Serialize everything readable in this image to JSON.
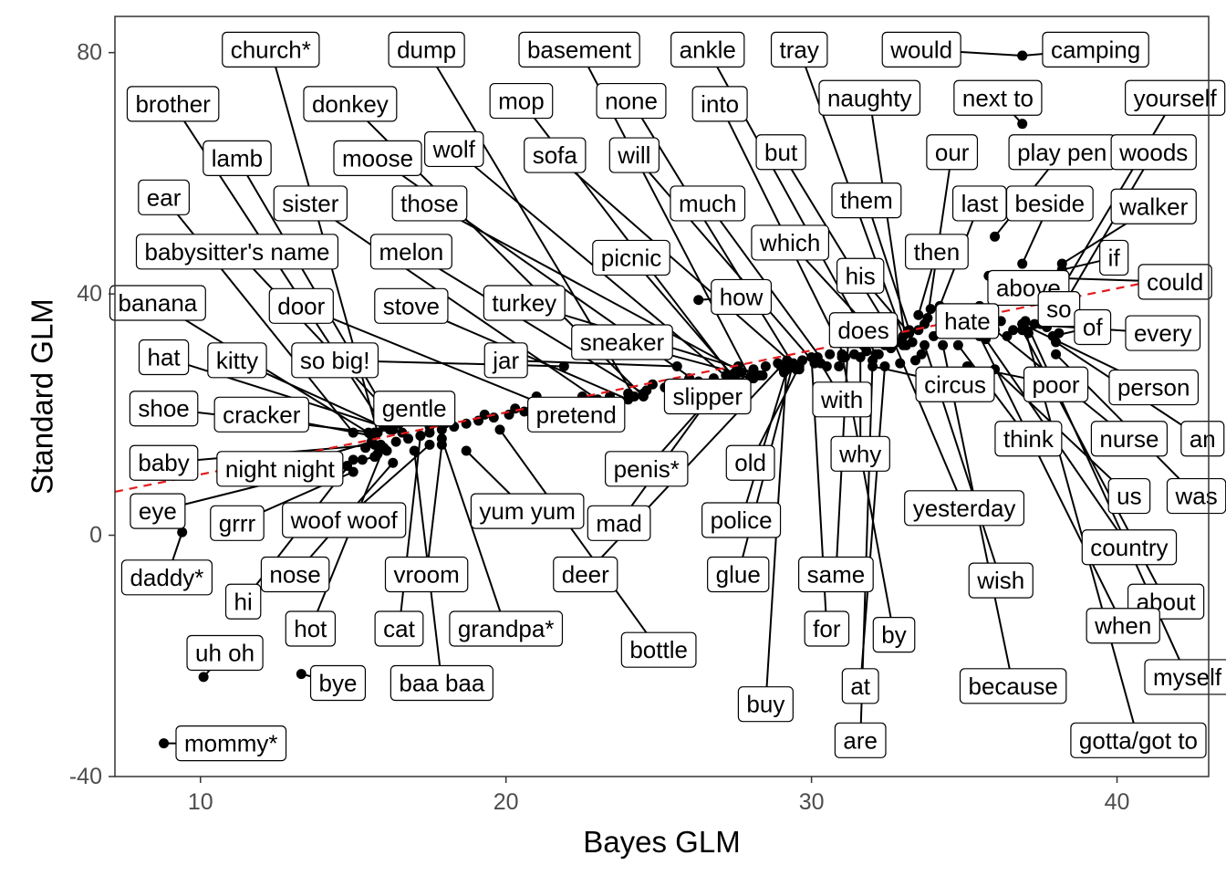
{
  "chart_data": {
    "type": "scatter",
    "xlabel": "Bayes GLM",
    "ylabel": "Standard GLM",
    "xlim": [
      7.2,
      43.0
    ],
    "ylim": [
      -40,
      86
    ],
    "x_ticks": [
      10,
      20,
      30,
      40
    ],
    "y_ticks": [
      -40,
      0,
      40,
      80
    ],
    "grid": false,
    "reference_line": {
      "style": "dashed",
      "color": "#e41a1c",
      "points": [
        [
          7.2,
          7.2
        ],
        [
          43.0,
          44.0
        ]
      ]
    },
    "colors": {
      "points": "#000000",
      "reference": "#e41a1c",
      "label_border": "#000000"
    },
    "labeled_points": [
      {
        "label": "church*",
        "x": 15.8,
        "y": 17,
        "lx": 12.3,
        "ly": 80.5
      },
      {
        "label": "dump",
        "x": 24.2,
        "y": 23,
        "lx": 17.4,
        "ly": 80.5
      },
      {
        "label": "basement",
        "x": 28.0,
        "y": 26,
        "lx": 22.4,
        "ly": 80.5
      },
      {
        "label": "ankle",
        "x": 32.1,
        "y": 30,
        "lx": 26.6,
        "ly": 80.5
      },
      {
        "label": "tray",
        "x": 33.0,
        "y": 33,
        "lx": 29.6,
        "ly": 80.5
      },
      {
        "label": "would",
        "x": 36.9,
        "y": 79.5,
        "lx": 33.6,
        "ly": 80.5
      },
      {
        "label": "camping",
        "x": 36.9,
        "y": 79.5,
        "lx": 39.3,
        "ly": 80.5
      },
      {
        "label": "brother",
        "x": 16.0,
        "y": 18,
        "lx": 9.1,
        "ly": 71.5
      },
      {
        "label": "donkey",
        "x": 24.5,
        "y": 23,
        "lx": 14.9,
        "ly": 71.5
      },
      {
        "label": "mop",
        "x": 27.6,
        "y": 25,
        "lx": 20.5,
        "ly": 72
      },
      {
        "label": "none",
        "x": 29.5,
        "y": 27.5,
        "lx": 24.1,
        "ly": 72
      },
      {
        "label": "into",
        "x": 31.1,
        "y": 29.5,
        "lx": 27.0,
        "ly": 71.5
      },
      {
        "label": "naughty",
        "x": 33.1,
        "y": 31.5,
        "lx": 31.9,
        "ly": 72.5
      },
      {
        "label": "next to",
        "x": 36.9,
        "y": 68.2,
        "lx": 36.1,
        "ly": 72.5
      },
      {
        "label": "yourself",
        "x": 37.5,
        "y": 35,
        "lx": 41.9,
        "ly": 72.5
      },
      {
        "label": "lamb",
        "x": 16.3,
        "y": 18.5,
        "lx": 11.2,
        "ly": 62.5
      },
      {
        "label": "moose",
        "x": 26.5,
        "y": 24.5,
        "lx": 15.8,
        "ly": 62.5
      },
      {
        "label": "wolf",
        "x": 27.4,
        "y": 25.5,
        "lx": 18.3,
        "ly": 64
      },
      {
        "label": "sofa",
        "x": 29.6,
        "y": 27.5,
        "lx": 21.6,
        "ly": 63
      },
      {
        "label": "will",
        "x": 30.1,
        "y": 28.5,
        "lx": 24.2,
        "ly": 63
      },
      {
        "label": "but",
        "x": 32.8,
        "y": 32,
        "lx": 29.0,
        "ly": 63.5
      },
      {
        "label": "our",
        "x": 33.8,
        "y": 36,
        "lx": 34.6,
        "ly": 63.5
      },
      {
        "label": "play pen",
        "x": 36.0,
        "y": 49.5,
        "lx": 38.2,
        "ly": 63.5
      },
      {
        "label": "woods",
        "x": 38.0,
        "y": 36,
        "lx": 41.2,
        "ly": 63.5
      },
      {
        "label": "ear",
        "x": 15.0,
        "y": 17,
        "lx": 8.8,
        "ly": 56
      },
      {
        "label": "sister",
        "x": 23.0,
        "y": 22.5,
        "lx": 13.6,
        "ly": 55
      },
      {
        "label": "those",
        "x": 28.1,
        "y": 26,
        "lx": 17.5,
        "ly": 55
      },
      {
        "label": "much",
        "x": 30.5,
        "y": 28,
        "lx": 26.6,
        "ly": 55
      },
      {
        "label": "them",
        "x": 33.2,
        "y": 34,
        "lx": 31.8,
        "ly": 55.5
      },
      {
        "label": "last",
        "x": 34.2,
        "y": 38,
        "lx": 35.5,
        "ly": 55
      },
      {
        "label": "beside",
        "x": 36.9,
        "y": 45,
        "lx": 37.8,
        "ly": 55
      },
      {
        "label": "walker",
        "x": 38.2,
        "y": 45,
        "lx": 41.2,
        "ly": 54.5
      },
      {
        "label": "babysitter's name",
        "x": 16.5,
        "y": 18.5,
        "lx": 11.2,
        "ly": 47
      },
      {
        "label": "melon",
        "x": 24.5,
        "y": 23.5,
        "lx": 16.9,
        "ly": 47
      },
      {
        "label": "picnic",
        "x": 27.5,
        "y": 26,
        "lx": 24.1,
        "ly": 46
      },
      {
        "label": "which",
        "x": 32.4,
        "y": 31.5,
        "lx": 29.3,
        "ly": 48.5
      },
      {
        "label": "then",
        "x": 33.5,
        "y": 36.5,
        "lx": 34.1,
        "ly": 47
      },
      {
        "label": "if",
        "x": 38.2,
        "y": 44,
        "lx": 39.9,
        "ly": 46
      },
      {
        "label": "his",
        "x": 33.2,
        "y": 33.5,
        "lx": 31.6,
        "ly": 43
      },
      {
        "label": "could",
        "x": 35.8,
        "y": 43,
        "lx": 41.9,
        "ly": 42
      },
      {
        "label": "above",
        "x": 36.8,
        "y": 42.5,
        "lx": 37.1,
        "ly": 41
      },
      {
        "label": "banana",
        "x": 15.5,
        "y": 17,
        "lx": 8.6,
        "ly": 38.5
      },
      {
        "label": "door",
        "x": 21.8,
        "y": 20.5,
        "lx": 13.3,
        "ly": 38
      },
      {
        "label": "stove",
        "x": 24.0,
        "y": 22.5,
        "lx": 16.9,
        "ly": 38
      },
      {
        "label": "turkey",
        "x": 28.4,
        "y": 26.5,
        "lx": 20.6,
        "ly": 38.5
      },
      {
        "label": "how",
        "x": 26.3,
        "y": 39,
        "lx": 27.7,
        "ly": 39.5
      },
      {
        "label": "so",
        "x": 38.0,
        "y": 36,
        "lx": 38.1,
        "ly": 37.5
      },
      {
        "label": "does",
        "x": 31.2,
        "y": 33,
        "lx": 31.7,
        "ly": 34
      },
      {
        "label": "hate",
        "x": 34.8,
        "y": 34,
        "lx": 35.1,
        "ly": 35.5
      },
      {
        "label": "of",
        "x": 37.9,
        "y": 33,
        "lx": 39.2,
        "ly": 34.5
      },
      {
        "label": "every",
        "x": 36.9,
        "y": 35,
        "lx": 41.5,
        "ly": 33.5
      },
      {
        "label": "hat",
        "x": 16.3,
        "y": 17.5,
        "lx": 8.8,
        "ly": 29.5
      },
      {
        "label": "kitty",
        "x": 16.2,
        "y": 17.5,
        "lx": 11.2,
        "ly": 29
      },
      {
        "label": "so big!",
        "x": 21.9,
        "y": 28,
        "lx": 14.4,
        "ly": 29
      },
      {
        "label": "jar",
        "x": 25.6,
        "y": 28,
        "lx": 20.0,
        "ly": 29
      },
      {
        "label": "sneaker",
        "x": 27.5,
        "y": 27,
        "lx": 23.8,
        "ly": 32
      },
      {
        "label": "slipper",
        "x": 28.1,
        "y": 27,
        "lx": 26.6,
        "ly": 23.0
      },
      {
        "label": "with",
        "x": 30.3,
        "y": 28.5,
        "lx": 31.0,
        "ly": 22.5
      },
      {
        "label": "circus",
        "x": 32.0,
        "y": 28,
        "lx": 34.7,
        "ly": 25
      },
      {
        "label": "poor",
        "x": 35.1,
        "y": 28,
        "lx": 38.0,
        "ly": 25
      },
      {
        "label": "person",
        "x": 36.9,
        "y": 35,
        "lx": 41.2,
        "ly": 24.5
      },
      {
        "label": "shoe",
        "x": 15.7,
        "y": 17,
        "lx": 8.8,
        "ly": 21
      },
      {
        "label": "cracker",
        "x": 15.6,
        "y": 16.5,
        "lx": 12.0,
        "ly": 20
      },
      {
        "label": "gentle",
        "x": 17.5,
        "y": 18,
        "lx": 17.0,
        "ly": 21
      },
      {
        "label": "pretend",
        "x": 21.0,
        "y": 23,
        "lx": 22.3,
        "ly": 20
      },
      {
        "label": "think",
        "x": 34.8,
        "y": 31.5,
        "lx": 37.1,
        "ly": 16
      },
      {
        "label": "nurse",
        "x": 36.0,
        "y": 34,
        "lx": 40.4,
        "ly": 16
      },
      {
        "label": "an",
        "x": 38.0,
        "y": 32,
        "lx": 42.8,
        "ly": 16
      },
      {
        "label": "baby",
        "x": 15.7,
        "y": 15,
        "lx": 8.8,
        "ly": 12
      },
      {
        "label": "night night",
        "x": 15.6,
        "y": 15.5,
        "lx": 12.6,
        "ly": 11
      },
      {
        "label": "penis*",
        "x": 27.6,
        "y": 28,
        "lx": 24.6,
        "ly": 11
      },
      {
        "label": "old",
        "x": 29.6,
        "y": 28,
        "lx": 28.0,
        "ly": 12
      },
      {
        "label": "why",
        "x": 31.6,
        "y": 29.5,
        "lx": 31.6,
        "ly": 13.5
      },
      {
        "label": "us",
        "x": 36.0,
        "y": 27.5,
        "lx": 40.4,
        "ly": 6.5
      },
      {
        "label": "was",
        "x": 38.0,
        "y": 30,
        "lx": 42.6,
        "ly": 6.5
      },
      {
        "label": "eye",
        "x": 15.7,
        "y": 13,
        "lx": 8.6,
        "ly": 4
      },
      {
        "label": "grrr",
        "x": 15.0,
        "y": 10.5,
        "lx": 11.2,
        "ly": 2
      },
      {
        "label": "woof woof",
        "x": 17.5,
        "y": 15,
        "lx": 14.7,
        "ly": 2.5
      },
      {
        "label": "yum yum",
        "x": 18.7,
        "y": 14,
        "lx": 20.7,
        "ly": 4
      },
      {
        "label": "mad",
        "x": 27.0,
        "y": 25,
        "lx": 23.7,
        "ly": 2
      },
      {
        "label": "police",
        "x": 29.2,
        "y": 27.5,
        "lx": 27.7,
        "ly": 2.5
      },
      {
        "label": "yesterday",
        "x": 32.7,
        "y": 32,
        "lx": 35.0,
        "ly": 4.5
      },
      {
        "label": "country",
        "x": 35.7,
        "y": 32.5,
        "lx": 40.4,
        "ly": -2
      },
      {
        "label": "daddy*",
        "x": 9.4,
        "y": 0.5,
        "lx": 8.9,
        "ly": -7
      },
      {
        "label": "nose",
        "x": 16.3,
        "y": 12,
        "lx": 13.1,
        "ly": -6.5
      },
      {
        "label": "vroom",
        "x": 17.9,
        "y": 15,
        "lx": 17.4,
        "ly": -6.5
      },
      {
        "label": "deer",
        "x": 29.0,
        "y": 28,
        "lx": 22.6,
        "ly": -6.5
      },
      {
        "label": "glue",
        "x": 29.4,
        "y": 28.5,
        "lx": 27.6,
        "ly": -6.5
      },
      {
        "label": "same",
        "x": 31.2,
        "y": 32,
        "lx": 30.8,
        "ly": -6.5
      },
      {
        "label": "wish",
        "x": 33.7,
        "y": 31.5,
        "lx": 36.2,
        "ly": -7.5
      },
      {
        "label": "about",
        "x": 36.9,
        "y": 34,
        "lx": 41.6,
        "ly": -11
      },
      {
        "label": "hi",
        "x": 15.0,
        "y": 12.5,
        "lx": 11.4,
        "ly": -11
      },
      {
        "label": "hot",
        "x": 16.0,
        "y": 14.5,
        "lx": 13.6,
        "ly": -15.5
      },
      {
        "label": "cat",
        "x": 17.2,
        "y": 16.5,
        "lx": 16.5,
        "ly": -15.5
      },
      {
        "label": "grandpa*",
        "x": 17.9,
        "y": 16,
        "lx": 20.0,
        "ly": -15.5
      },
      {
        "label": "for",
        "x": 30.0,
        "y": 29.5,
        "lx": 30.5,
        "ly": -15.5
      },
      {
        "label": "by",
        "x": 31.0,
        "y": 30,
        "lx": 32.7,
        "ly": -16.5
      },
      {
        "label": "when",
        "x": 35.5,
        "y": 33,
        "lx": 40.2,
        "ly": -15
      },
      {
        "label": "uh oh",
        "x": 10.1,
        "y": -23.5,
        "lx": 10.8,
        "ly": -19.5
      },
      {
        "label": "bottle",
        "x": 19.8,
        "y": 17.5,
        "lx": 25.0,
        "ly": -19
      },
      {
        "label": "bye",
        "x": 13.3,
        "y": -23.0,
        "lx": 14.5,
        "ly": -24.5
      },
      {
        "label": "baa baa",
        "x": 17.0,
        "y": 14,
        "lx": 17.9,
        "ly": -24.5
      },
      {
        "label": "at",
        "x": 32.4,
        "y": 28,
        "lx": 31.6,
        "ly": -25
      },
      {
        "label": "because",
        "x": 34.3,
        "y": 31.5,
        "lx": 36.6,
        "ly": -25
      },
      {
        "label": "myself",
        "x": 37.0,
        "y": 35.5,
        "lx": 42.3,
        "ly": -23.5
      },
      {
        "label": "buy",
        "x": 29.2,
        "y": 29,
        "lx": 28.5,
        "ly": -28
      },
      {
        "label": "mommy*",
        "x": 8.8,
        "y": -34.5,
        "lx": 11.0,
        "ly": -34.5
      },
      {
        "label": "are",
        "x": 32.0,
        "y": 29,
        "lx": 31.6,
        "ly": -34
      },
      {
        "label": "gotta/got to",
        "x": 37.0,
        "y": 34,
        "lx": 40.7,
        "ly": -34
      }
    ],
    "unlabeled_points": [
      {
        "x": 14.8,
        "y": 11.5
      },
      {
        "x": 15.3,
        "y": 12.5
      },
      {
        "x": 15.8,
        "y": 13.5
      },
      {
        "x": 16.1,
        "y": 14
      },
      {
        "x": 16.4,
        "y": 15.5
      },
      {
        "x": 16.8,
        "y": 16
      },
      {
        "x": 17.2,
        "y": 16.5
      },
      {
        "x": 17.5,
        "y": 17
      },
      {
        "x": 17.9,
        "y": 17.5
      },
      {
        "x": 18.3,
        "y": 18
      },
      {
        "x": 18.7,
        "y": 18.5
      },
      {
        "x": 19.1,
        "y": 19
      },
      {
        "x": 19.6,
        "y": 19.5
      },
      {
        "x": 20.1,
        "y": 20
      },
      {
        "x": 20.6,
        "y": 20.5
      },
      {
        "x": 21.1,
        "y": 21
      },
      {
        "x": 21.6,
        "y": 21.5
      },
      {
        "x": 22.2,
        "y": 22
      },
      {
        "x": 22.8,
        "y": 22.5
      },
      {
        "x": 23.4,
        "y": 23
      },
      {
        "x": 24.0,
        "y": 23.5
      },
      {
        "x": 24.6,
        "y": 24
      },
      {
        "x": 25.2,
        "y": 24.5
      },
      {
        "x": 25.8,
        "y": 25
      },
      {
        "x": 26.3,
        "y": 25.5
      },
      {
        "x": 26.8,
        "y": 26
      },
      {
        "x": 27.2,
        "y": 26.5
      },
      {
        "x": 27.7,
        "y": 27
      },
      {
        "x": 28.1,
        "y": 27.5
      },
      {
        "x": 28.5,
        "y": 28
      },
      {
        "x": 28.9,
        "y": 28.5
      },
      {
        "x": 29.3,
        "y": 28
      },
      {
        "x": 29.7,
        "y": 29
      },
      {
        "x": 30.2,
        "y": 29.5
      },
      {
        "x": 30.6,
        "y": 30
      },
      {
        "x": 31.0,
        "y": 29.5
      },
      {
        "x": 31.4,
        "y": 30
      },
      {
        "x": 31.8,
        "y": 30.5
      },
      {
        "x": 32.2,
        "y": 30
      },
      {
        "x": 32.6,
        "y": 31
      },
      {
        "x": 33.0,
        "y": 31.5
      },
      {
        "x": 33.3,
        "y": 32
      },
      {
        "x": 33.5,
        "y": 34
      },
      {
        "x": 33.7,
        "y": 35
      },
      {
        "x": 33.6,
        "y": 30
      },
      {
        "x": 34.0,
        "y": 33
      },
      {
        "x": 34.4,
        "y": 34.5
      },
      {
        "x": 34.9,
        "y": 35
      },
      {
        "x": 35.3,
        "y": 33.5
      },
      {
        "x": 35.7,
        "y": 34.5
      },
      {
        "x": 36.2,
        "y": 35.5
      },
      {
        "x": 36.6,
        "y": 34
      },
      {
        "x": 37.3,
        "y": 35
      },
      {
        "x": 37.7,
        "y": 34.5
      },
      {
        "x": 38.1,
        "y": 33.5
      },
      {
        "x": 32.9,
        "y": 28.5
      },
      {
        "x": 33.4,
        "y": 29
      },
      {
        "x": 30.9,
        "y": 28
      },
      {
        "x": 28.3,
        "y": 26.5
      },
      {
        "x": 26.0,
        "y": 26
      },
      {
        "x": 24.8,
        "y": 25
      },
      {
        "x": 22.5,
        "y": 23
      },
      {
        "x": 20.3,
        "y": 21
      },
      {
        "x": 19.3,
        "y": 20
      },
      {
        "x": 18.0,
        "y": 18.5
      },
      {
        "x": 16.6,
        "y": 17
      },
      {
        "x": 15.9,
        "y": 15
      },
      {
        "x": 15.4,
        "y": 14.5
      },
      {
        "x": 33.9,
        "y": 37.5
      },
      {
        "x": 34.6,
        "y": 36.5
      },
      {
        "x": 35.5,
        "y": 38
      },
      {
        "x": 36.4,
        "y": 33
      },
      {
        "x": 37.1,
        "y": 33.5
      },
      {
        "x": 32.4,
        "y": 33.5
      },
      {
        "x": 31.7,
        "y": 31.5
      },
      {
        "x": 29.1,
        "y": 27
      }
    ]
  }
}
